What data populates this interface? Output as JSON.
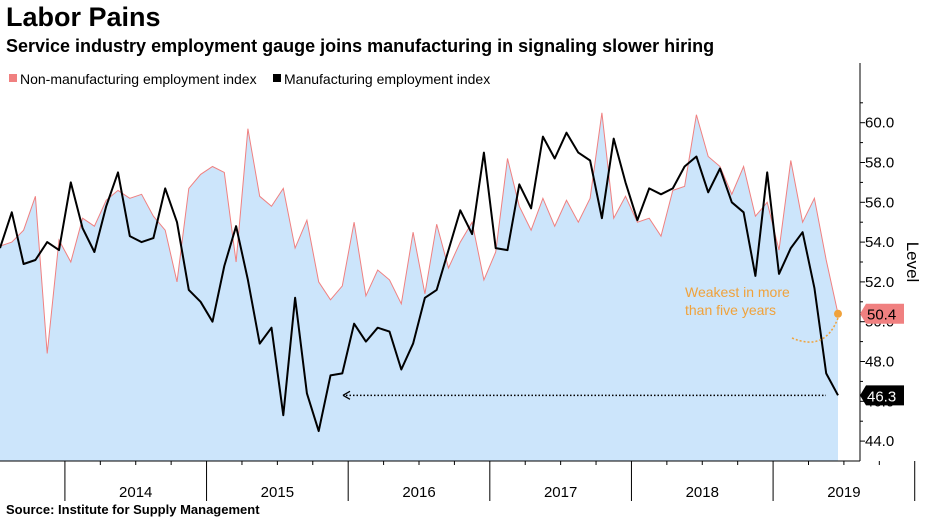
{
  "title": "Labor Pains",
  "subtitle": "Service industry employment gauge joins manufacturing in signaling slower hiring",
  "source": "Source: Institute for Supply Management",
  "colors": {
    "nonmfg_fill": "#cce5fb",
    "nonmfg_line": "#f08080",
    "mfg_line": "#000000",
    "annotation": "#f0a23b",
    "badge_red": "#f08080",
    "badge_black": "#000000"
  },
  "chart_data": {
    "type": "line",
    "ylabel": "Level",
    "ylim": [
      43,
      63
    ],
    "y_ticks": [
      "44.0",
      "46.0",
      "48.0",
      "50.0",
      "52.0",
      "54.0",
      "56.0",
      "58.0",
      "60.0"
    ],
    "x_labels": [
      "2014",
      "2015",
      "2016",
      "2017",
      "2018",
      "2019"
    ],
    "legend": "top-left",
    "x_start": "2013-07",
    "x_end": "2019-07",
    "series": [
      {
        "name": "Non-manufacturing employment index",
        "style": "area",
        "values": [
          53.8,
          54.0,
          54.6,
          56.3,
          48.4,
          54.1,
          53.0,
          55.2,
          54.8,
          56.1,
          56.6,
          56.2,
          56.4,
          55.3,
          54.6,
          52.0,
          56.7,
          57.4,
          57.8,
          57.5,
          53.0,
          59.7,
          56.3,
          55.8,
          56.7,
          53.7,
          55.1,
          52.0,
          51.1,
          51.8,
          55.0,
          51.3,
          52.6,
          52.1,
          50.9,
          54.5,
          51.4,
          54.9,
          52.7,
          54.0,
          55.0,
          52.1,
          53.5,
          58.2,
          55.8,
          54.6,
          56.2,
          54.8,
          56.1,
          55.0,
          56.2,
          60.5,
          55.2,
          56.3,
          55.0,
          55.2,
          54.3,
          56.6,
          56.8,
          60.4,
          58.3,
          57.8,
          56.4,
          57.8,
          55.3,
          56.0,
          53.6,
          58.1,
          55.0,
          56.2,
          53.1,
          50.4
        ]
      },
      {
        "name": "Manufacturing employment index",
        "style": "line",
        "values": [
          53.7,
          55.5,
          52.9,
          53.1,
          54.0,
          53.6,
          57.0,
          54.7,
          53.5,
          55.8,
          57.5,
          54.3,
          54.0,
          54.2,
          56.7,
          55.0,
          51.6,
          51.0,
          50.0,
          52.8,
          54.8,
          52.1,
          48.9,
          49.7,
          45.3,
          51.2,
          46.4,
          44.5,
          47.3,
          47.4,
          49.9,
          49.0,
          49.7,
          49.5,
          47.6,
          48.9,
          51.2,
          51.6,
          53.6,
          55.6,
          54.4,
          58.5,
          53.7,
          53.6,
          56.9,
          55.7,
          59.3,
          58.2,
          59.5,
          58.5,
          58.1,
          55.2,
          59.2,
          57.0,
          55.1,
          56.7,
          56.4,
          56.7,
          57.8,
          58.3,
          56.5,
          57.7,
          56.0,
          55.5,
          52.3,
          57.5,
          52.4,
          53.7,
          54.5,
          51.7,
          47.4,
          46.3
        ]
      }
    ],
    "last_values": [
      "50.4",
      "46.3"
    ],
    "annotation": [
      "Weakest in more",
      "than five years"
    ]
  }
}
